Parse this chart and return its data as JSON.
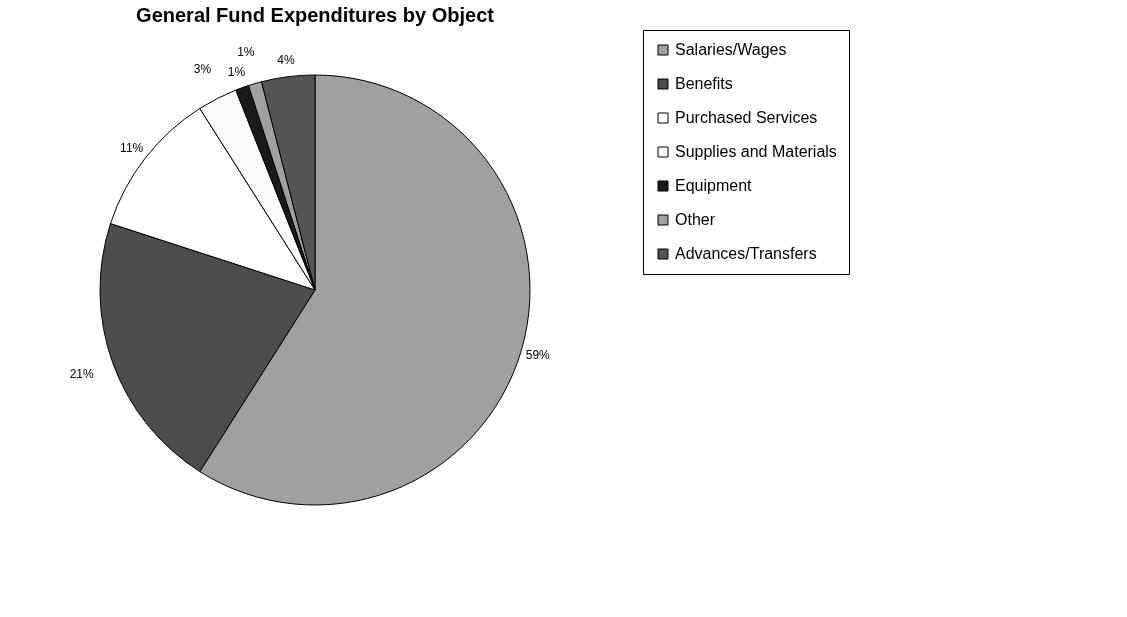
{
  "chart_data": {
    "type": "pie",
    "title": "General Fund Expenditures by Object",
    "categories": [
      "Salaries/Wages",
      "Benefits",
      "Purchased Services",
      "Supplies and Materials",
      "Equipment",
      "Other",
      "Advances/Transfers"
    ],
    "values": [
      59,
      21,
      11,
      3,
      1,
      1,
      4
    ],
    "colors": [
      "#a0a0a0",
      "#4d4d4d",
      "#ffffff",
      "#fafafa",
      "#1a1a1a",
      "#a0a0a0",
      "#555555"
    ],
    "value_labels": [
      "59%",
      "21%",
      "11%",
      "3%",
      "1%",
      "1%",
      "4%"
    ],
    "legend": "right"
  }
}
